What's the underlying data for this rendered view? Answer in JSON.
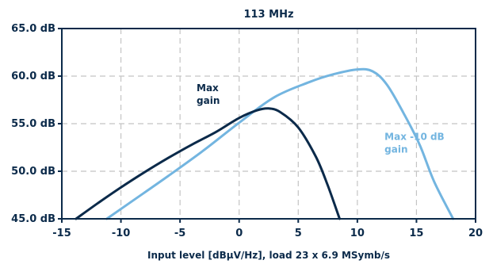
{
  "chart_data": {
    "type": "line",
    "title": "113 MHz",
    "xlabel": "Input level [dBµV/Hz], load 23 x 6.9 MSymb/s",
    "ylabel": "",
    "xlim": [
      -15,
      20
    ],
    "ylim": [
      45,
      65
    ],
    "x_ticks": [
      -15,
      -10,
      -5,
      0,
      5,
      10,
      15,
      20
    ],
    "x_tick_labels": [
      "-15",
      "-10",
      "-5",
      "0",
      "5",
      "10",
      "15",
      "20"
    ],
    "y_ticks": [
      45,
      50,
      55,
      60,
      65
    ],
    "y_tick_labels": [
      "45.0 dB",
      "50.0 dB",
      "55.0 dB",
      "60.0 dB",
      "65.0 dB"
    ],
    "grid": true,
    "series": [
      {
        "name": "Max gain",
        "color": "#0b2a4a",
        "points": [
          [
            -13.8,
            45.0
          ],
          [
            -12,
            46.6
          ],
          [
            -10,
            48.3
          ],
          [
            -8,
            49.9
          ],
          [
            -6,
            51.4
          ],
          [
            -4,
            52.8
          ],
          [
            -2,
            54.1
          ],
          [
            0,
            55.6
          ],
          [
            1.5,
            56.4
          ],
          [
            2.5,
            56.6
          ],
          [
            3.5,
            56.2
          ],
          [
            5,
            54.6
          ],
          [
            6.5,
            51.5
          ],
          [
            7.5,
            48.5
          ],
          [
            8.5,
            45.0
          ]
        ]
      },
      {
        "name": "Max -10 dB gain",
        "color": "#73b5e0",
        "points": [
          [
            -11.2,
            45.0
          ],
          [
            -9,
            46.9
          ],
          [
            -6,
            49.5
          ],
          [
            -3,
            52.2
          ],
          [
            0,
            55.1
          ],
          [
            3,
            57.8
          ],
          [
            6,
            59.4
          ],
          [
            8,
            60.2
          ],
          [
            10,
            60.7
          ],
          [
            11.3,
            60.5
          ],
          [
            12.5,
            59.1
          ],
          [
            14,
            55.9
          ],
          [
            15.3,
            52.7
          ],
          [
            16.5,
            48.9
          ],
          [
            18.1,
            45.0
          ]
        ]
      }
    ],
    "annotations": [
      {
        "text_lines": [
          "Max",
          "gain"
        ],
        "x": -3.6,
        "y": 58.4,
        "series": "Max gain"
      },
      {
        "text_lines": [
          "Max -10 dB",
          "gain"
        ],
        "x": 12.3,
        "y": 53.3,
        "series": "Max -10 dB gain"
      }
    ]
  }
}
